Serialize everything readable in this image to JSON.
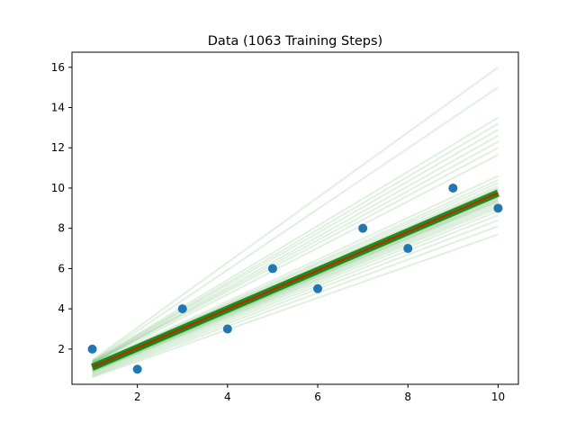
{
  "chart_data": {
    "type": "scatter",
    "title": "Data (1063 Training Steps)",
    "xlabel": "",
    "ylabel": "",
    "xlim": [
      0.55,
      10.45
    ],
    "ylim": [
      0.25,
      16.75
    ],
    "x_ticks": [
      2,
      4,
      6,
      8,
      10
    ],
    "y_ticks": [
      2,
      4,
      6,
      8,
      10,
      12,
      14,
      16
    ],
    "grid": false,
    "colors": {
      "points": "#1f77b4",
      "trace_lines": "#008000",
      "fit_line": "#cc2200"
    },
    "series": [
      {
        "type": "scatter",
        "points": [
          {
            "x": 1,
            "y": 2
          },
          {
            "x": 2,
            "y": 1
          },
          {
            "x": 3,
            "y": 4
          },
          {
            "x": 4,
            "y": 3
          },
          {
            "x": 5,
            "y": 6
          },
          {
            "x": 6,
            "y": 5
          },
          {
            "x": 7,
            "y": 8
          },
          {
            "x": 8,
            "y": 7
          },
          {
            "x": 9,
            "y": 10
          },
          {
            "x": 10,
            "y": 9
          }
        ]
      },
      {
        "type": "line",
        "x": [
          1,
          10
        ],
        "y": [
          1.1,
          9.75
        ]
      }
    ],
    "training_lines": {
      "x_range": [
        1,
        10
      ],
      "lines": [
        [
          1.45,
          16.0
        ],
        [
          1.4,
          15.0
        ],
        [
          1.4,
          13.5
        ],
        [
          1.35,
          13.2
        ],
        [
          1.35,
          12.9
        ],
        [
          1.3,
          12.6
        ],
        [
          1.3,
          12.3
        ],
        [
          1.3,
          12.0
        ],
        [
          1.25,
          11.65
        ],
        [
          1.25,
          10.6
        ],
        [
          1.2,
          10.4
        ],
        [
          1.2,
          10.25
        ],
        [
          1.18,
          10.1
        ],
        [
          1.15,
          10.0
        ],
        [
          1.15,
          9.95
        ],
        [
          1.12,
          9.9
        ],
        [
          1.1,
          9.85
        ],
        [
          1.1,
          9.8
        ],
        [
          1.08,
          9.75
        ],
        [
          1.05,
          9.7
        ],
        [
          1.05,
          9.65
        ],
        [
          1.02,
          9.6
        ],
        [
          1.0,
          9.55
        ],
        [
          1.0,
          9.5
        ],
        [
          0.98,
          9.45
        ],
        [
          0.95,
          9.4
        ],
        [
          0.95,
          9.35
        ],
        [
          0.92,
          9.3
        ],
        [
          0.9,
          9.2
        ],
        [
          0.88,
          9.1
        ],
        [
          0.85,
          9.0
        ],
        [
          0.8,
          8.85
        ],
        [
          0.75,
          8.65
        ],
        [
          0.7,
          8.4
        ],
        [
          0.65,
          8.1
        ],
        [
          0.6,
          7.7
        ]
      ]
    }
  }
}
